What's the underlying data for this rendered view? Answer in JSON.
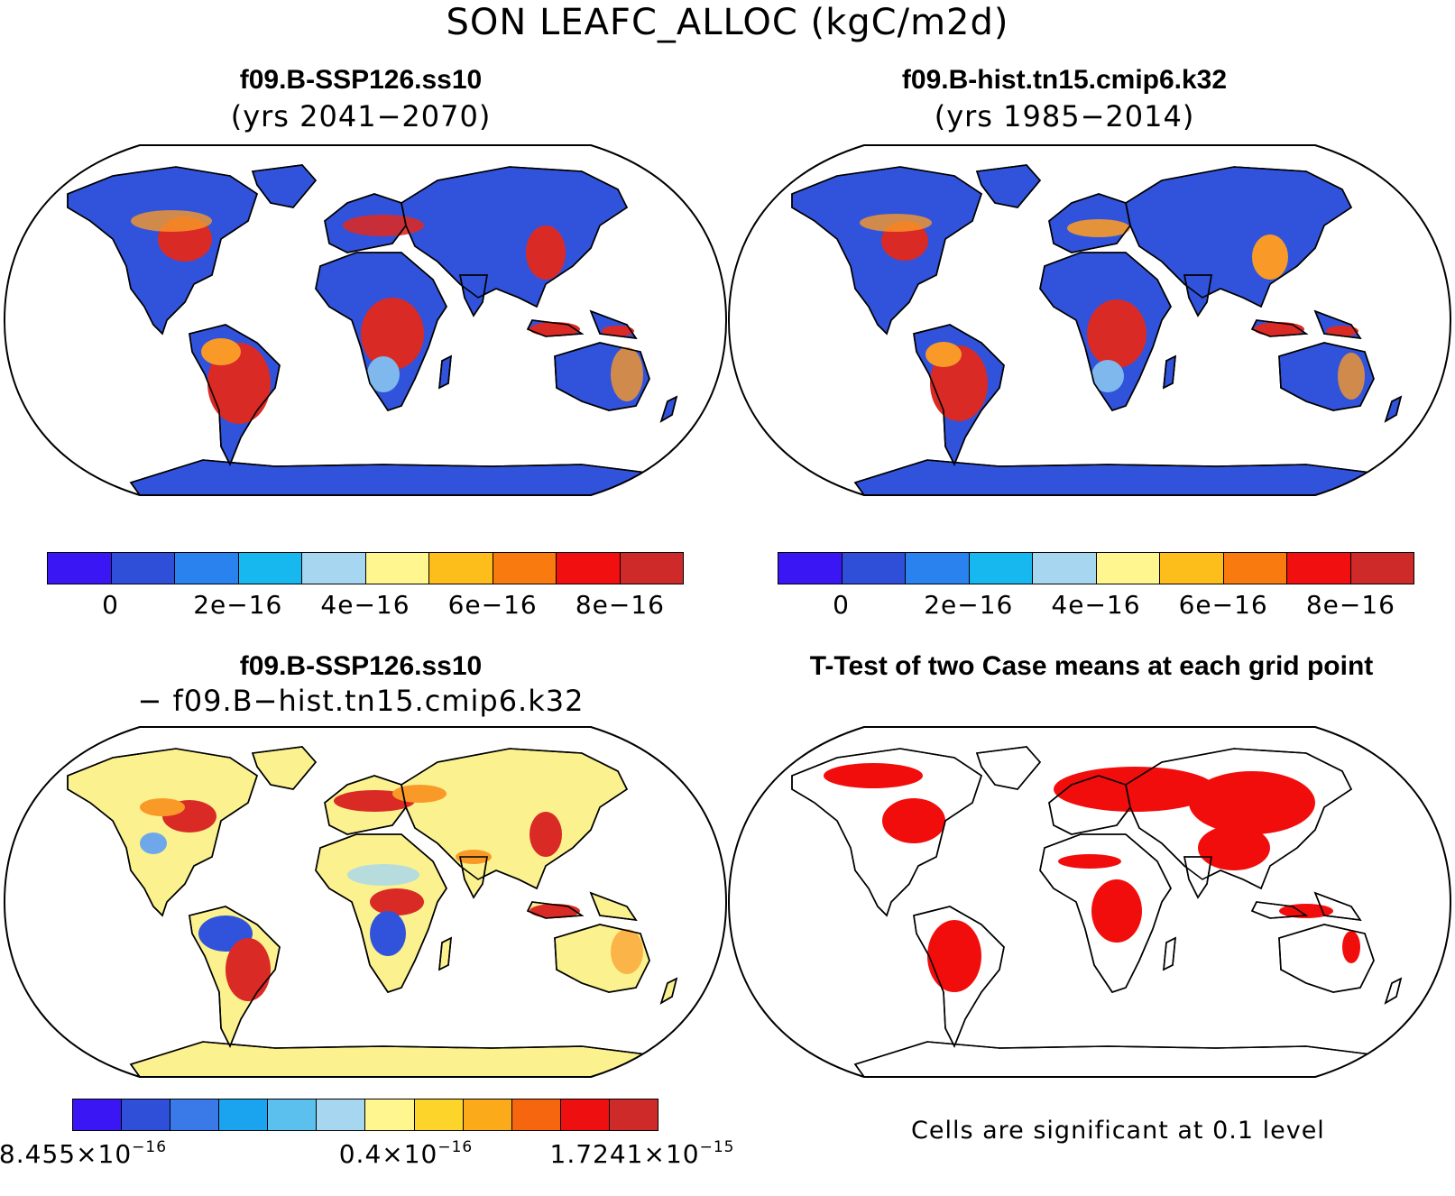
{
  "figure_title": "SON LEAFC_ALLOC (kgC/m2d)",
  "panels": [
    {
      "title": "f09.B-SSP126.ss10",
      "subtitle": "(yrs 2041−2070)",
      "field": "absolute",
      "colorbar": {
        "colors": [
          "#3b16f5",
          "#2f4fd9",
          "#2a82ee",
          "#17b7f0",
          "#a6d6f0",
          "#fff68f",
          "#fdbd1a",
          "#f97a0f",
          "#f20f0f",
          "#cf2a2a"
        ],
        "labels": [
          "0",
          "2e−16",
          "4e−16",
          "6e−16",
          "8e−16"
        ]
      }
    },
    {
      "title": "f09.B-hist.tn15.cmip6.k32",
      "subtitle": "(yrs 1985−2014)",
      "field": "absolute",
      "colorbar": {
        "colors": [
          "#3b16f5",
          "#2f4fd9",
          "#2a82ee",
          "#17b7f0",
          "#a6d6f0",
          "#fff68f",
          "#fdbd1a",
          "#f97a0f",
          "#f20f0f",
          "#cf2a2a"
        ],
        "labels": [
          "0",
          "2e−16",
          "4e−16",
          "6e−16",
          "8e−16"
        ]
      }
    },
    {
      "title": "f09.B-SSP126.ss10",
      "subtitle": "− f09.B−hist.tn15.cmip6.k32",
      "field": "difference",
      "colorbar": {
        "colors": [
          "#3b16f5",
          "#2f4fd9",
          "#3a7ae8",
          "#1aa3ee",
          "#5cc0ee",
          "#a6d6f0",
          "#fff68f",
          "#fdd42a",
          "#fbab19",
          "#f6660f",
          "#ee1010",
          "#cf2a2a"
        ],
        "labels": [
          {
            "mantissa": "8.455×10",
            "exp": "−16"
          },
          {
            "mantissa": "0.4×10",
            "exp": "−16"
          },
          {
            "mantissa": "1.7241×10",
            "exp": "−15"
          }
        ]
      }
    },
    {
      "title": "T-Test of two Case means at each grid point",
      "field": "significance",
      "footnote": "Cells are significant at 0.1 level"
    }
  ],
  "colors": {
    "land_low": "#3153dc",
    "high": "#d92a26",
    "mid": "#f99a28",
    "diff_base": "#fbf28f",
    "significant": "#f20d0d",
    "coast": "#000000",
    "ocean": "#ffffff"
  }
}
